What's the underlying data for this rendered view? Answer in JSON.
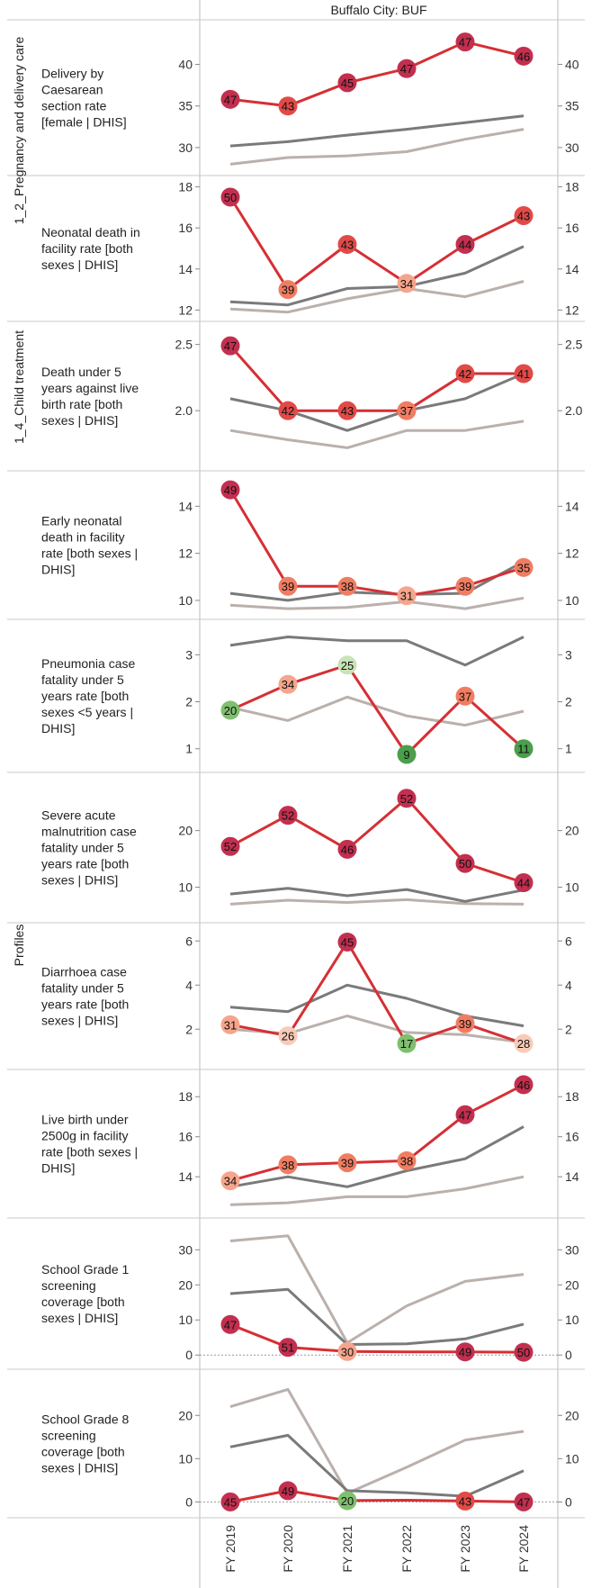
{
  "header": {
    "title": "Buffalo City: BUF"
  },
  "chart_data": {
    "type": "line",
    "title": "Buffalo City: BUF",
    "x": [
      "FY 2019",
      "FY 2020",
      "FY 2021",
      "FY 2022",
      "FY 2023",
      "FY 2024"
    ],
    "colors": {
      "district": "#d62f34",
      "national": "#7a7a7a",
      "province": "#bab0ac",
      "gridline": "#cccccc"
    },
    "group_labels": [
      {
        "text": "1_2_Pregnancy and delivery care",
        "panels": [
          0,
          1
        ]
      },
      {
        "text": "1_4_Child treatment",
        "panels": [
          2,
          3
        ]
      },
      {
        "text": "Profiles",
        "panels": [
          4,
          9
        ]
      }
    ],
    "panels": [
      {
        "label": [
          "Delivery by",
          "Caesarean",
          "section rate",
          "[female | DHIS]"
        ],
        "ticks": [
          30,
          35,
          40
        ],
        "tick_labels": [
          "30",
          "35",
          "40"
        ],
        "ylim": [
          27.5,
          44.5
        ],
        "district": [
          35.8,
          35.0,
          37.8,
          39.5,
          42.7,
          41.0
        ],
        "ranks": [
          47,
          43,
          45,
          47,
          47,
          46
        ],
        "national": [
          30.2,
          30.7,
          31.5,
          32.2,
          33.0,
          33.8
        ],
        "province": [
          28.0,
          28.8,
          29.0,
          29.5,
          31.0,
          32.2
        ]
      },
      {
        "label": [
          "Neonatal death in",
          "facility rate [both",
          "sexes | DHIS]"
        ],
        "ticks": [
          12,
          14,
          16,
          18
        ],
        "tick_labels": [
          "12",
          "14",
          "16",
          "18"
        ],
        "ylim": [
          11.8,
          18.2
        ],
        "district": [
          17.5,
          13.0,
          15.2,
          13.3,
          15.2,
          16.6
        ],
        "ranks": [
          50,
          39,
          43,
          34,
          44,
          43
        ],
        "national": [
          12.4,
          12.25,
          13.05,
          13.15,
          13.8,
          15.1
        ],
        "province": [
          12.05,
          11.9,
          12.55,
          13.05,
          12.65,
          13.4
        ]
      },
      {
        "label": [
          "Death under 5",
          "years against live",
          "birth rate [both",
          "sexes | DHIS]"
        ],
        "ticks": [
          2.0,
          2.5
        ],
        "tick_labels": [
          "2.0",
          "2.5"
        ],
        "ylim": [
          1.6,
          2.62
        ],
        "district": [
          2.49,
          2.0,
          2.0,
          2.0,
          2.28,
          2.28
        ],
        "ranks": [
          47,
          42,
          43,
          37,
          42,
          41
        ],
        "national": [
          2.09,
          2.0,
          1.85,
          2.0,
          2.09,
          2.28
        ],
        "province": [
          1.85,
          1.78,
          1.72,
          1.85,
          1.85,
          1.92
        ]
      },
      {
        "label": [
          "Early neonatal",
          "death in facility",
          "rate [both sexes |",
          "DHIS]"
        ],
        "ticks": [
          10,
          12,
          14
        ],
        "tick_labels": [
          "10",
          "12",
          "14"
        ],
        "ylim": [
          9.5,
          15.2
        ],
        "district": [
          14.7,
          10.6,
          10.6,
          10.2,
          10.6,
          11.4
        ],
        "ranks": [
          49,
          39,
          38,
          31,
          39,
          35
        ],
        "national": [
          10.3,
          10.0,
          10.35,
          10.25,
          10.3,
          11.65
        ],
        "province": [
          9.8,
          9.65,
          9.7,
          9.95,
          9.65,
          10.1
        ]
      },
      {
        "label": [
          "Pneumonia case",
          "fatality under 5",
          "years rate [both",
          "sexes <5 years |",
          "DHIS]"
        ],
        "ticks": [
          1,
          2,
          3
        ],
        "tick_labels": [
          "1",
          "2",
          "3"
        ],
        "ylim": [
          0.65,
          3.6
        ],
        "district": [
          1.82,
          2.37,
          2.78,
          0.88,
          2.12,
          1.0
        ],
        "ranks": [
          20,
          34,
          25,
          9,
          37,
          11
        ],
        "national": [
          3.2,
          3.38,
          3.3,
          3.3,
          2.78,
          3.38
        ],
        "province": [
          1.88,
          1.6,
          2.1,
          1.7,
          1.5,
          1.8
        ]
      },
      {
        "label": [
          "Severe acute",
          "malnutrition case",
          "fatality under 5",
          "years rate [both",
          "sexes | DHIS]"
        ],
        "ticks": [
          10,
          20
        ],
        "tick_labels": [
          "10",
          "20"
        ],
        "ylim": [
          5,
          29
        ],
        "district": [
          17.2,
          22.7,
          16.7,
          25.7,
          14.2,
          10.8
        ],
        "ranks": [
          52,
          52,
          46,
          52,
          50,
          44
        ],
        "national": [
          8.8,
          9.8,
          8.5,
          9.6,
          7.5,
          9.5
        ],
        "province": [
          7.0,
          7.7,
          7.3,
          7.8,
          7.1,
          7.0
        ]
      },
      {
        "label": [
          "Diarrhoea case",
          "fatality under 5",
          "years rate [both",
          "sexes | DHIS]"
        ],
        "ticks": [
          2,
          4,
          6
        ],
        "tick_labels": [
          "2",
          "4",
          "6"
        ],
        "ylim": [
          0.5,
          6.5
        ],
        "district": [
          2.2,
          1.7,
          5.95,
          1.35,
          2.25,
          1.35
        ],
        "ranks": [
          31,
          26,
          45,
          17,
          39,
          28
        ],
        "national": [
          3.0,
          2.8,
          4.0,
          3.4,
          2.6,
          2.15
        ],
        "province": [
          2.0,
          1.8,
          2.6,
          1.85,
          1.75,
          1.4
        ]
      },
      {
        "label": [
          "Live birth under",
          "2500g in facility",
          "rate [both sexes |",
          "DHIS]"
        ],
        "ticks": [
          14,
          16,
          18
        ],
        "tick_labels": [
          "14",
          "16",
          "18"
        ],
        "ylim": [
          12.3,
          19.0
        ],
        "district": [
          13.8,
          14.6,
          14.7,
          14.8,
          17.1,
          18.6
        ],
        "ranks": [
          34,
          38,
          39,
          38,
          47,
          46
        ],
        "national": [
          13.5,
          14.0,
          13.5,
          14.3,
          14.9,
          16.5
        ],
        "province": [
          12.6,
          12.7,
          13.0,
          13.0,
          13.4,
          14.0
        ]
      },
      {
        "label": [
          "School Grade 1",
          "screening",
          "coverage [both",
          "sexes | DHIS]"
        ],
        "ticks": [
          0,
          10,
          20,
          30
        ],
        "tick_labels": [
          "0",
          "10",
          "20",
          "30"
        ],
        "ylim": [
          -2,
          37
        ],
        "district": [
          8.7,
          2.2,
          1.0,
          0.9,
          0.9,
          0.8
        ],
        "ranks": [
          47,
          51,
          30,
          49,
          50
        ],
        "rank_index": [
          0,
          1,
          2,
          4,
          5
        ],
        "national": [
          17.5,
          18.7,
          3.0,
          3.2,
          4.6,
          8.8
        ],
        "province": [
          32.5,
          34.0,
          3.5,
          14.0,
          21.0,
          23.0
        ],
        "zero_line": true
      },
      {
        "label": [
          "School Grade 8",
          "screening",
          "coverage [both",
          "sexes | DHIS]"
        ],
        "ticks": [
          0,
          10,
          20
        ],
        "tick_labels": [
          "0",
          "10",
          "20"
        ],
        "ylim": [
          -2,
          29
        ],
        "district": [
          0.0,
          2.6,
          0.3,
          0.4,
          0.2,
          0.0
        ],
        "ranks": [
          45,
          49,
          20,
          43,
          47
        ],
        "rank_index": [
          0,
          1,
          2,
          4,
          5
        ],
        "national": [
          12.7,
          15.4,
          2.6,
          2.1,
          1.3,
          7.2
        ],
        "province": [
          22.0,
          26.0,
          2.0,
          8.0,
          14.3,
          16.3
        ],
        "zero_line": true
      }
    ]
  }
}
